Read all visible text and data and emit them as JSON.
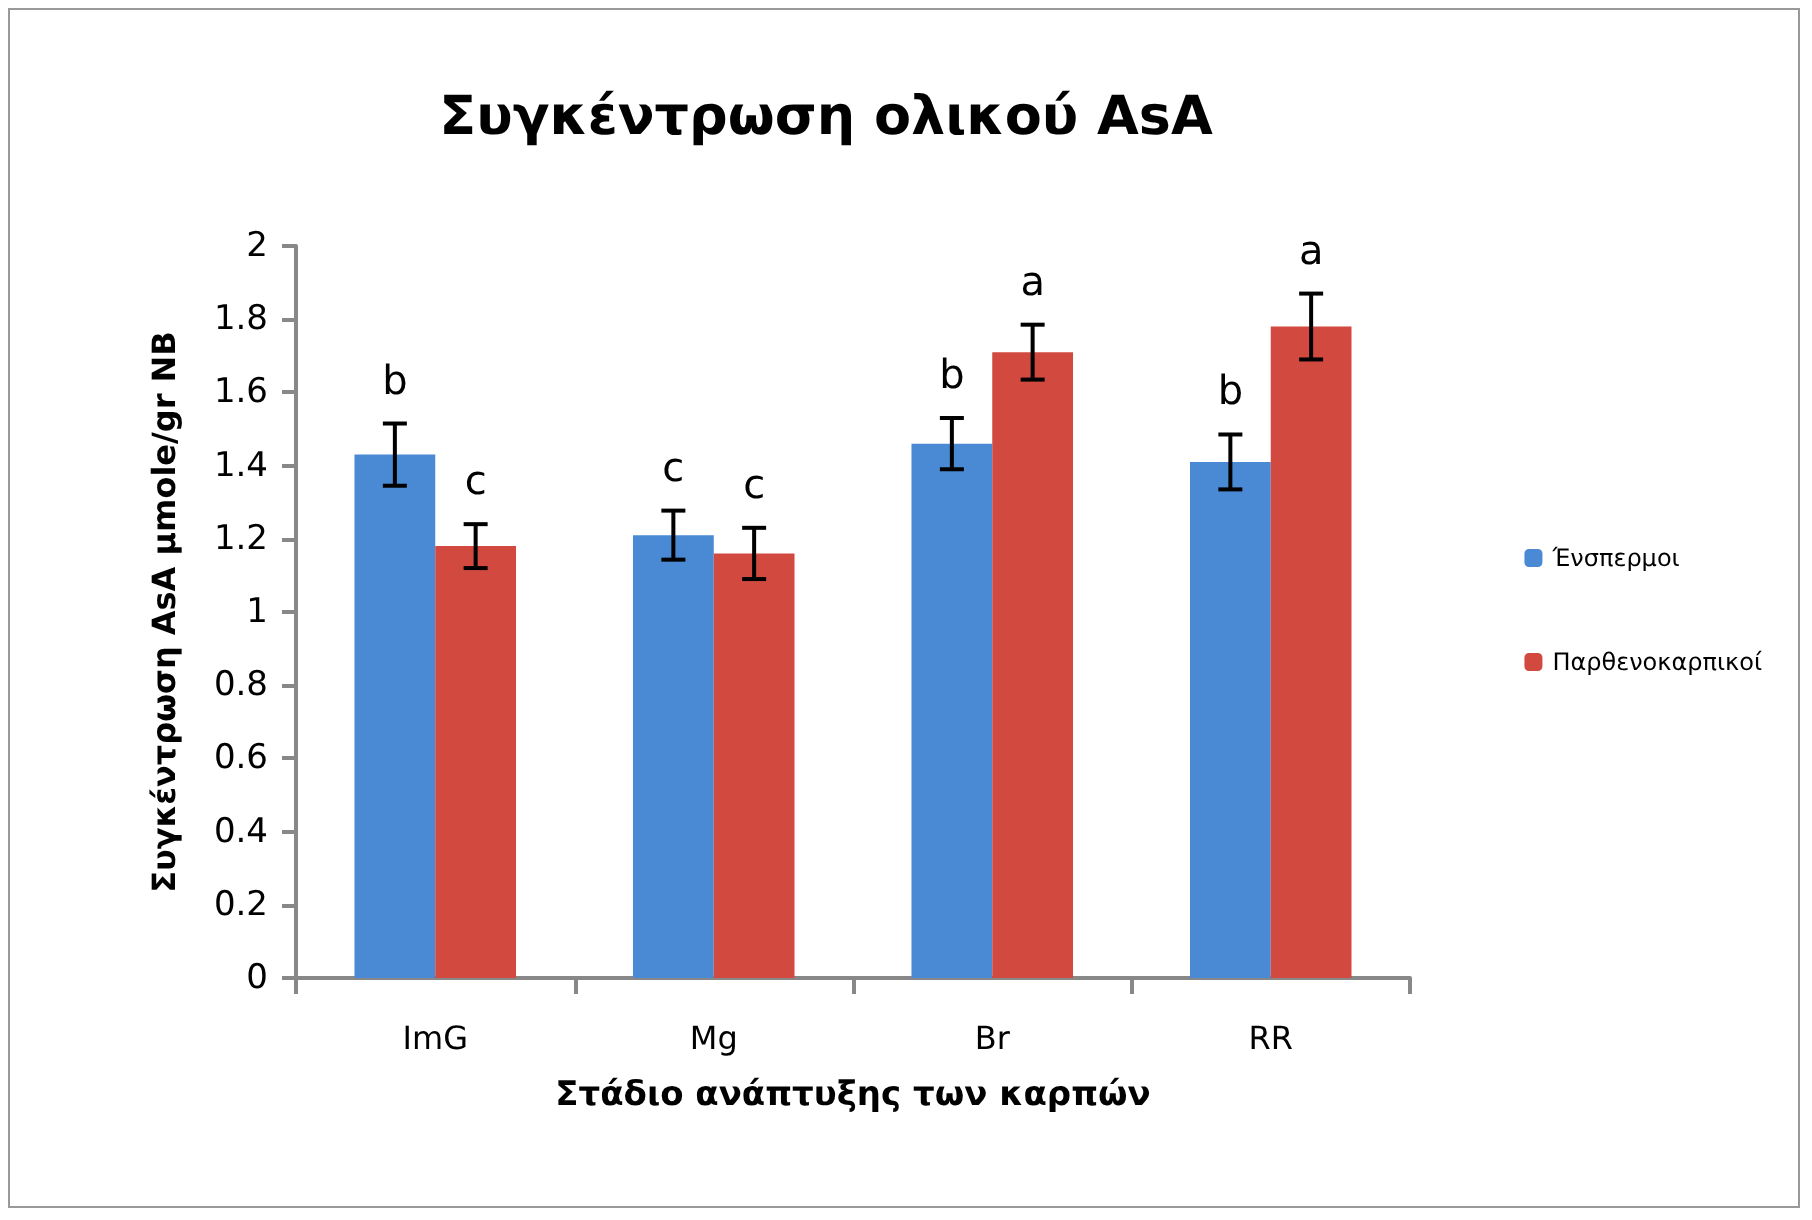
{
  "chart_data": {
    "type": "bar",
    "title": "Συγκέντρωση ολικού AsA",
    "xlabel": "Στάδιο ανάπτυξης των καρπών",
    "ylabel": "Συγκέντρωση AsA μmole/gr ΝΒ",
    "categories": [
      "ImG",
      "Mg",
      "Br",
      "RR"
    ],
    "series": [
      {
        "name": "Ένσπερμοι",
        "color": "#4a8ad4",
        "values": [
          1.43,
          1.21,
          1.46,
          1.41
        ],
        "errors": [
          0.085,
          0.067,
          0.07,
          0.075
        ]
      },
      {
        "name": "Παρθενοκαρπικοί",
        "color": "#d2493f",
        "values": [
          1.18,
          1.16,
          1.71,
          1.78
        ],
        "errors": [
          0.06,
          0.07,
          0.075,
          0.09
        ]
      }
    ],
    "ylim": [
      0,
      2
    ],
    "yticks": [
      0,
      0.2,
      0.4,
      0.6,
      0.8,
      1,
      1.2,
      1.4,
      1.6,
      1.8,
      2
    ],
    "annotations": [
      {
        "text": "b",
        "x": "ImG",
        "y": 1.43
      },
      {
        "text": "c",
        "x": "ImG",
        "y": 1.18
      },
      {
        "text": "c",
        "x": "Mg",
        "y": 1.21
      },
      {
        "text": "c",
        "x": "Mg",
        "y": 1.16
      },
      {
        "text": "b",
        "x": "Br",
        "y": 1.46
      },
      {
        "text": "a",
        "x": "Br",
        "y": 1.71
      },
      {
        "text": "b",
        "x": "RR",
        "y": 1.41
      },
      {
        "text": "a",
        "x": "RR",
        "y": 1.78
      }
    ],
    "grid": false,
    "legend": "right"
  }
}
